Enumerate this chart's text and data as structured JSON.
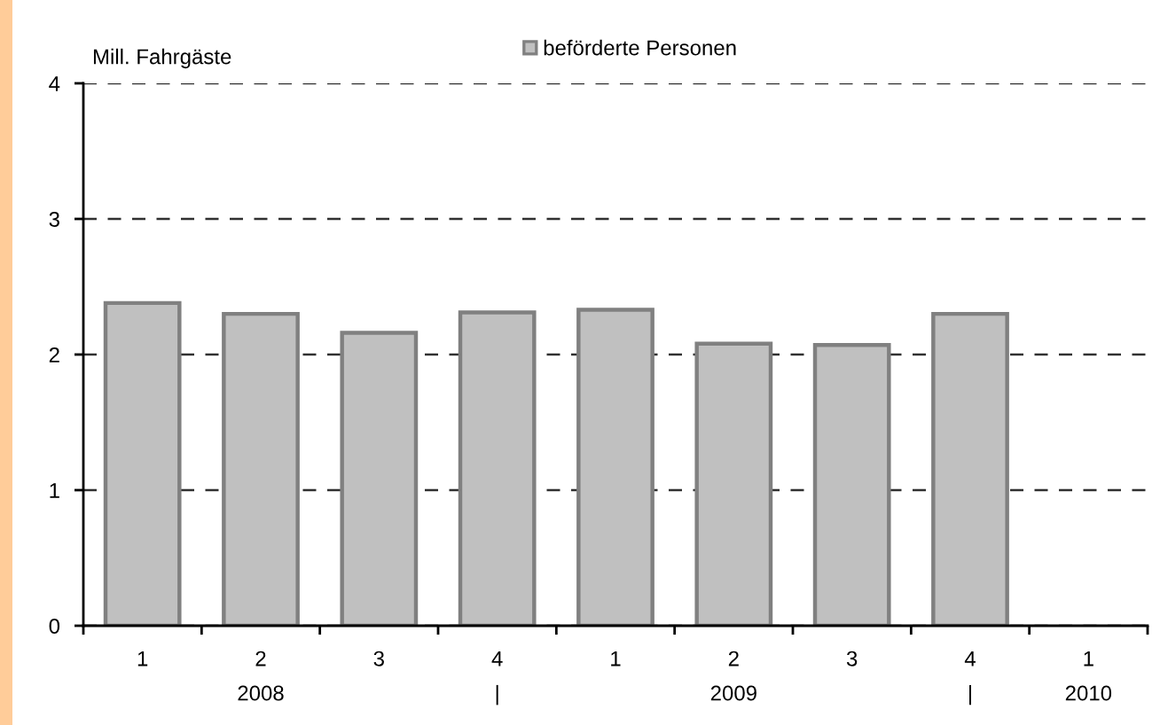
{
  "chart_data": {
    "type": "bar",
    "ylabel": "Mill. Fahrgäste",
    "categories": [
      "1",
      "2\n2008",
      "3",
      "4\n|",
      "1",
      "2\n2009",
      "3",
      "4\n|",
      "1\n2010"
    ],
    "series": [
      {
        "name": "beförderte Personen",
        "color": "#c0c0c0",
        "values": [
          2.38,
          2.3,
          2.16,
          2.31,
          2.33,
          2.08,
          2.07,
          2.3,
          null
        ]
      }
    ],
    "ylim": [
      0,
      4
    ],
    "yticks": [
      0,
      1,
      2,
      3,
      4
    ],
    "grid": "y",
    "legend": "top"
  }
}
